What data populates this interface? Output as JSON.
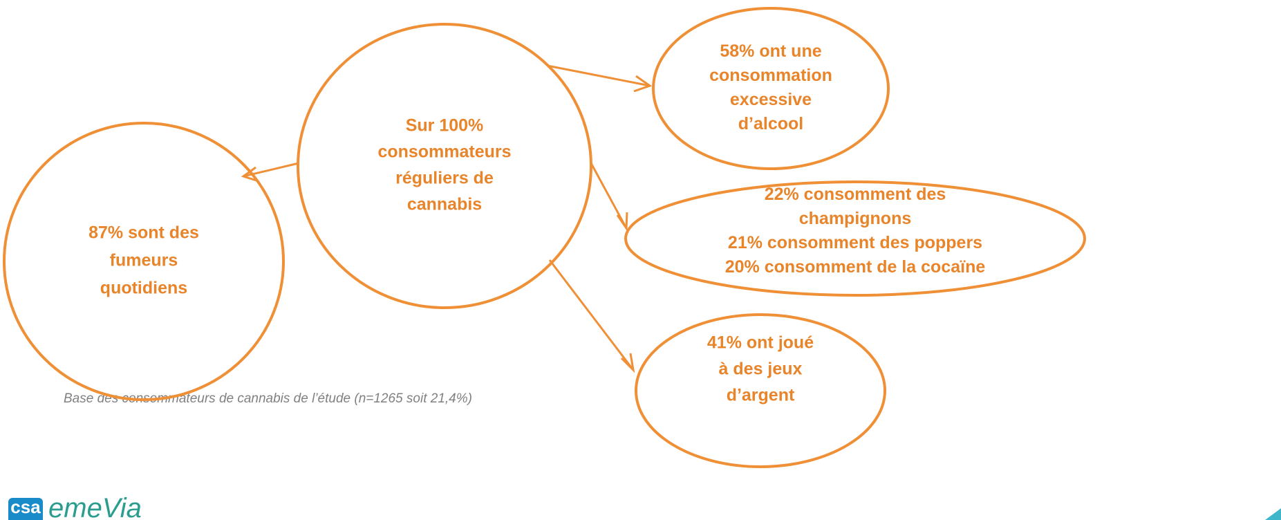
{
  "nodes": [
    {
      "lines": [
        "Sur 100%",
        "consommateurs",
        "réguliers de",
        "cannabis"
      ]
    },
    {
      "lines": [
        "87% sont des",
        "fumeurs",
        "quotidiens"
      ]
    },
    {
      "lines": [
        "58% ont une",
        "consommation",
        "excessive",
        "d’alcool"
      ]
    },
    {
      "lines": [
        "22% consomment des",
        "champignons",
        "21% consomment des poppers",
        "20% consomment de la cocaïne"
      ]
    },
    {
      "lines": [
        "41% ont joué",
        "à des jeux",
        "d’argent"
      ]
    }
  ],
  "footnote": "Base des consommateurs de cannabis de l’étude (n=1265 soit 21,4%)",
  "logo": {
    "brand": "csa",
    "name": "emeVia"
  }
}
